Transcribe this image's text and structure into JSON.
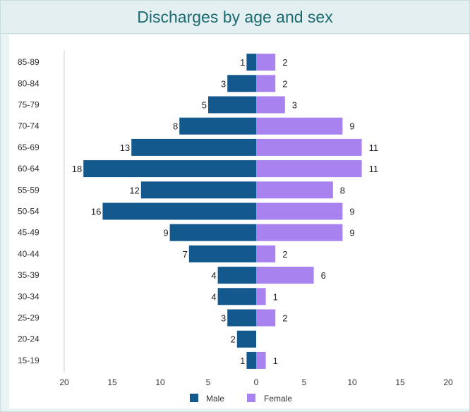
{
  "chart_data": {
    "type": "bar",
    "orientation": "horizontal",
    "layout": "population-pyramid",
    "title": "Discharges by age and sex",
    "categories": [
      "85-89",
      "80-84",
      "75-79",
      "70-74",
      "65-69",
      "60-64",
      "55-59",
      "50-54",
      "45-49",
      "40-44",
      "35-39",
      "30-34",
      "25-29",
      "20-24",
      "15-19"
    ],
    "series": [
      {
        "name": "Male",
        "color": "#14598e",
        "values": [
          1,
          3,
          5,
          8,
          13,
          18,
          12,
          16,
          9,
          7,
          4,
          4,
          3,
          2,
          1
        ]
      },
      {
        "name": "Female",
        "color": "#a882ee",
        "values": [
          2,
          2,
          3,
          9,
          11,
          11,
          8,
          9,
          9,
          2,
          6,
          1,
          2,
          0,
          1
        ]
      }
    ],
    "xlim": [
      -20,
      20
    ],
    "xticks": [
      -20,
      -15,
      -10,
      -5,
      0,
      5,
      10,
      15,
      20
    ],
    "xtick_labels": [
      "20",
      "15",
      "10",
      "5",
      "0",
      "5",
      "10",
      "15",
      "20"
    ],
    "grid": false,
    "legend": "bottom-center"
  },
  "colors": {
    "title_text": "#1a6b70",
    "title_background": "#e3eff1",
    "frame_background": "#eaf3f4"
  }
}
